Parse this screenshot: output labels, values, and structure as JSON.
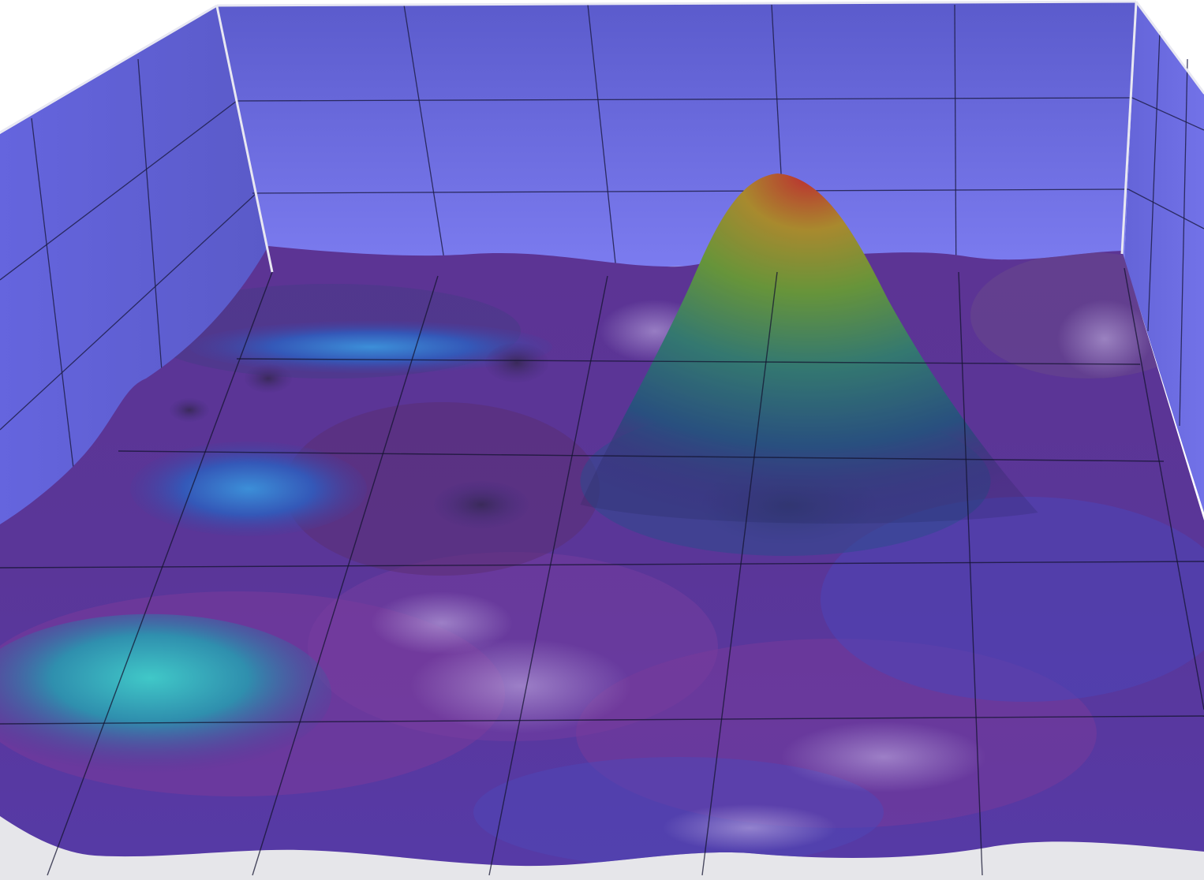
{
  "chart_data": {
    "type": "surface3d",
    "title": "",
    "xlabel": "",
    "ylabel": "",
    "zlabel": "",
    "grid": true,
    "walls": {
      "back": true,
      "left": true,
      "right": true,
      "color": "#6f6fe6"
    },
    "colormap": [
      "#5a2a8a",
      "#3a4ec0",
      "#30b4b4",
      "#5cc040",
      "#d4b828",
      "#d8302a"
    ],
    "peaks": [
      {
        "name": "main",
        "x": 0.62,
        "y": 0.18,
        "height": 1.0,
        "spread": 0.13
      },
      {
        "name": "front-left",
        "x": 0.05,
        "y": 0.93,
        "height": 0.32,
        "spread": 0.17
      },
      {
        "name": "left-mid",
        "x": 0.18,
        "y": 0.55,
        "height": 0.2,
        "spread": 0.1
      },
      {
        "name": "left-ridge",
        "x": 0.22,
        "y": 0.28,
        "height": 0.14,
        "spread": 0.08
      }
    ],
    "tick_labels_visible": false
  }
}
